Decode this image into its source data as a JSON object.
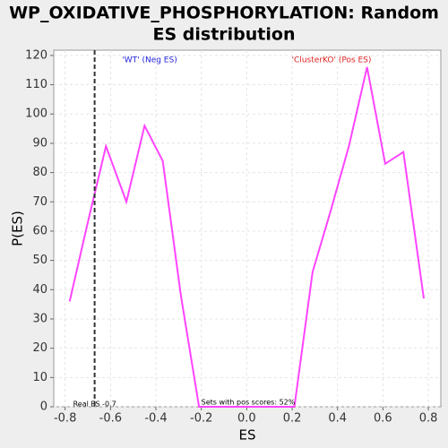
{
  "chart_data": {
    "type": "line",
    "title": "WP_OXIDATIVE_PHOSPHORYLATION: Random",
    "subtitle": "ES distribution",
    "x_label": "ES",
    "y_label": "P(ES)",
    "x": [
      -0.78,
      -0.7,
      -0.62,
      -0.53,
      -0.45,
      -0.37,
      -0.29,
      -0.21,
      -0.12,
      -0.04,
      0.04,
      0.12,
      0.21,
      0.29,
      0.37,
      0.45,
      0.53,
      0.61,
      0.69,
      0.78
    ],
    "series": [
      {
        "name": "P(ES)",
        "color": "#ff44ff",
        "values": [
          36,
          63,
          89,
          70,
          96,
          84,
          38,
          0,
          0,
          0,
          0,
          0,
          0,
          46,
          67,
          89,
          116,
          83,
          87,
          37
        ]
      }
    ],
    "xlim": [
      -0.85,
      0.855
    ],
    "ylim": [
      0,
      121.8
    ],
    "xticks": [
      -0.8,
      -0.6,
      -0.4,
      -0.2,
      {
        "value": 0,
        "label": "0.0"
      },
      0.2,
      0.4,
      0.6,
      0.8
    ],
    "yticks": [
      0,
      10,
      20,
      30,
      40,
      50,
      60,
      70,
      80,
      90,
      100,
      110,
      120
    ],
    "grid": true,
    "real_es": {
      "value": -0.67,
      "label": "Real ES -0.7"
    },
    "neg_label": "'WT' (Neg ES)",
    "pos_label": "'ClusterKO' (Pos ES)",
    "pos_scores_label": "Sets with pos scores: 52%"
  }
}
